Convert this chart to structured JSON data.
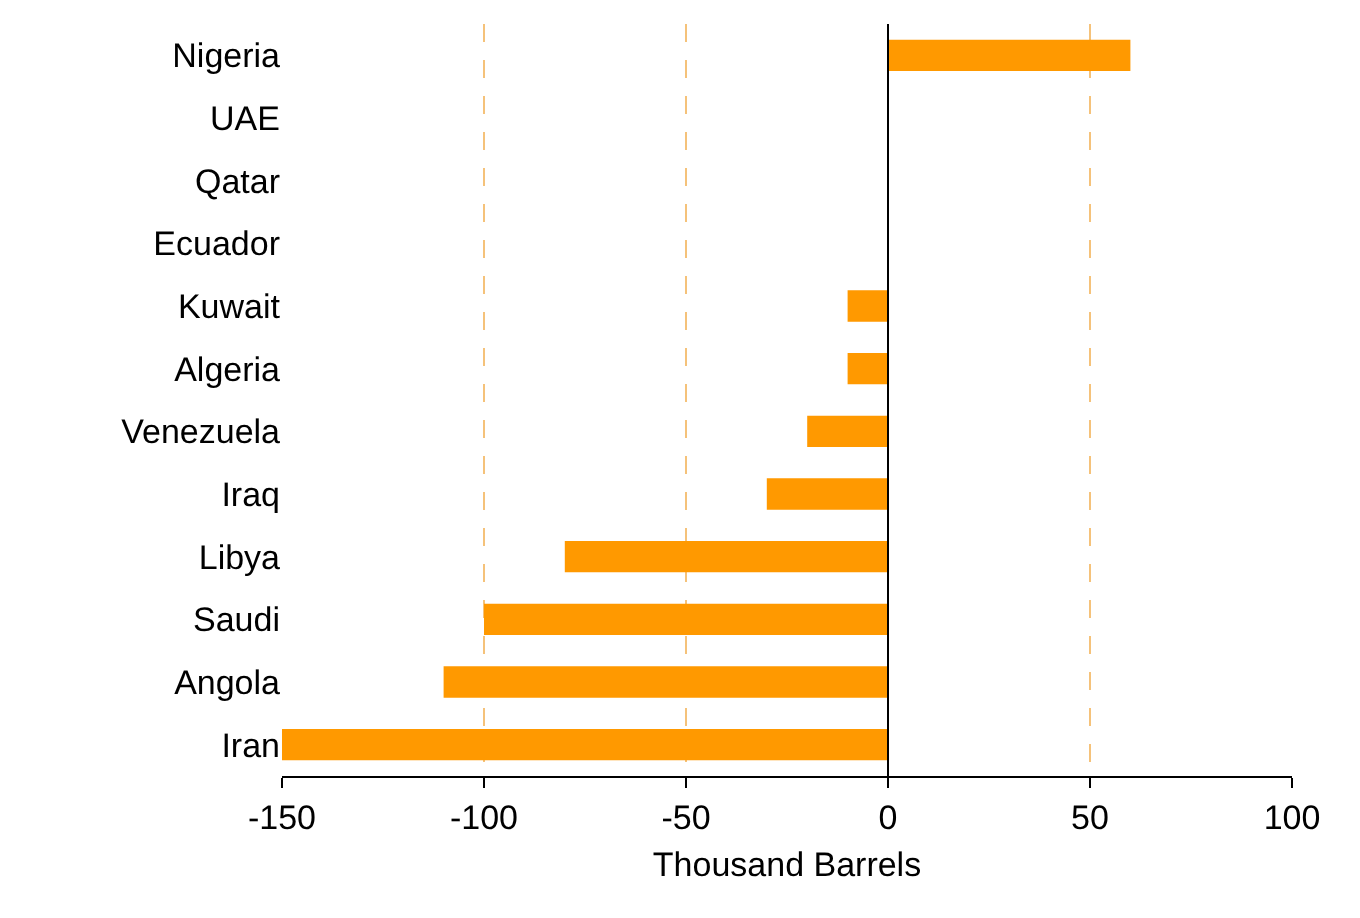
{
  "chart_data": {
    "type": "bar",
    "orientation": "horizontal",
    "xlabel": "Thousand Barrels",
    "categories": [
      "Nigeria",
      "UAE",
      "Qatar",
      "Ecuador",
      "Kuwait",
      "Algeria",
      "Venezuela",
      "Iraq",
      "Libya",
      "Saudi",
      "Angola",
      "Iran"
    ],
    "values": [
      60,
      0,
      0,
      0,
      -10,
      -10,
      -20,
      -30,
      -80,
      -100,
      -110,
      -150
    ],
    "color": "#ff9900",
    "xlim": [
      -150,
      100
    ],
    "xticks": [
      -150,
      -100,
      -50,
      0,
      50,
      100
    ],
    "grid": "x"
  }
}
